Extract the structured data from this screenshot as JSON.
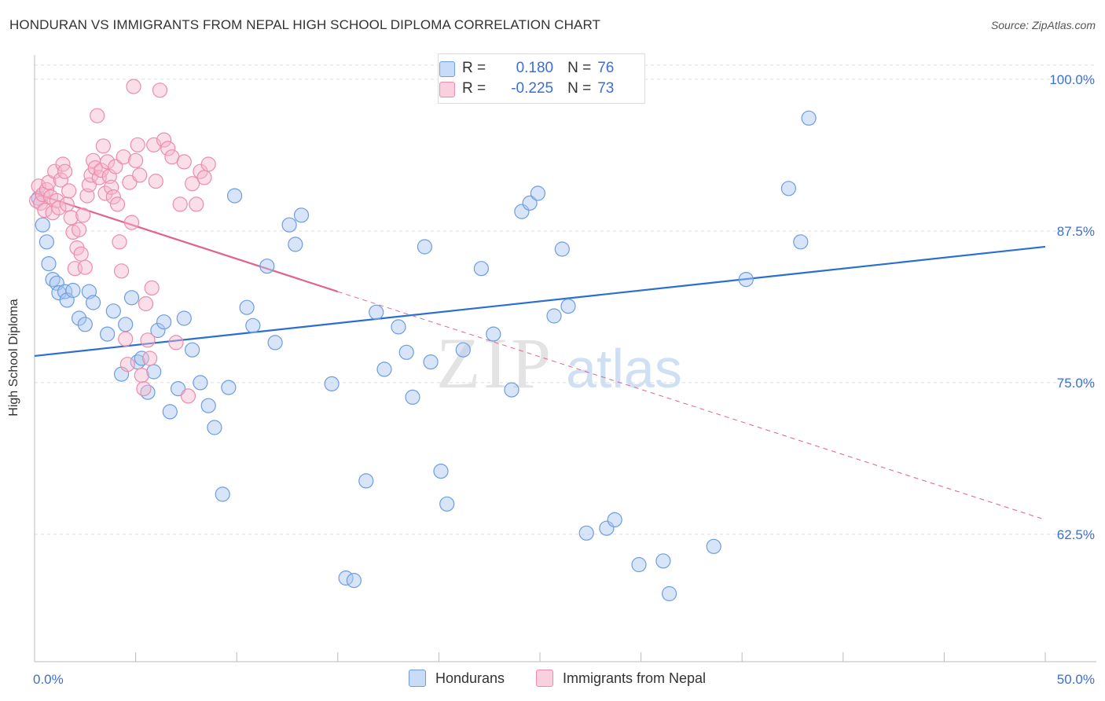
{
  "header": {
    "title": "HONDURAN VS IMMIGRANTS FROM NEPAL HIGH SCHOOL DIPLOMA CORRELATION CHART",
    "source": "Source: ZipAtlas.com"
  },
  "watermark": {
    "zip": "ZIP",
    "atlas": "atlas"
  },
  "legend": {
    "rows": [
      {
        "r_label": "R =",
        "r_value": "0.180",
        "n_label": "N =",
        "n_value": "76",
        "color": "#a9c6f0"
      },
      {
        "r_label": "R =",
        "r_value": "-0.225",
        "n_label": "N =",
        "n_value": "73",
        "color": "#f5b8cb"
      }
    ]
  },
  "bottom_legend": {
    "items": [
      {
        "label": "Hondurans",
        "color": "#a9c6f0"
      },
      {
        "label": "Immigrants from Nepal",
        "color": "#f5b8cb"
      }
    ]
  },
  "colors": {
    "blue": "#5b93e0",
    "blue_line": "#2a6fd0",
    "pink": "#ee89a8",
    "pink_line": "#e0648e",
    "axis_text": "#3a6fd8",
    "grid": "#dddddd"
  },
  "chart_data": {
    "type": "scatter",
    "title": "HONDURAN VS IMMIGRANTS FROM NEPAL HIGH SCHOOL DIPLOMA CORRELATION CHART",
    "xlabel": "",
    "ylabel": "High School Diploma",
    "xlim": [
      0,
      50
    ],
    "ylim": [
      52,
      102
    ],
    "x_tick_labels": [
      "0.0%",
      "50.0%"
    ],
    "y_ticks": [
      62.5,
      75.0,
      87.5,
      100.0
    ],
    "y_tick_labels": [
      "62.5%",
      "75.0%",
      "87.5%",
      "100.0%"
    ],
    "grid": true,
    "series": [
      {
        "name": "Hondurans",
        "color": "#5b93e0",
        "points": [
          [
            0.2,
            90.2
          ],
          [
            0.4,
            88.0
          ],
          [
            0.6,
            86.6
          ],
          [
            0.7,
            84.8
          ],
          [
            0.9,
            83.5
          ],
          [
            1.1,
            83.2
          ],
          [
            1.2,
            82.4
          ],
          [
            1.5,
            82.5
          ],
          [
            1.6,
            81.8
          ],
          [
            1.9,
            82.6
          ],
          [
            2.2,
            80.3
          ],
          [
            2.5,
            79.8
          ],
          [
            2.7,
            82.5
          ],
          [
            2.9,
            81.6
          ],
          [
            3.6,
            79.0
          ],
          [
            3.9,
            80.9
          ],
          [
            4.3,
            75.7
          ],
          [
            4.5,
            79.8
          ],
          [
            4.8,
            82.0
          ],
          [
            5.1,
            76.7
          ],
          [
            5.3,
            77.0
          ],
          [
            5.6,
            74.2
          ],
          [
            5.9,
            75.9
          ],
          [
            6.1,
            79.3
          ],
          [
            6.4,
            80.0
          ],
          [
            6.7,
            72.6
          ],
          [
            7.1,
            74.5
          ],
          [
            7.4,
            80.3
          ],
          [
            7.8,
            77.7
          ],
          [
            8.2,
            75.0
          ],
          [
            8.6,
            73.1
          ],
          [
            8.9,
            71.3
          ],
          [
            9.3,
            65.8
          ],
          [
            9.6,
            74.6
          ],
          [
            9.9,
            90.4
          ],
          [
            10.5,
            81.2
          ],
          [
            10.8,
            79.7
          ],
          [
            11.5,
            84.6
          ],
          [
            11.9,
            78.3
          ],
          [
            12.6,
            88.0
          ],
          [
            12.9,
            86.4
          ],
          [
            13.2,
            88.8
          ],
          [
            14.7,
            74.9
          ],
          [
            15.4,
            58.9
          ],
          [
            15.8,
            58.7
          ],
          [
            16.4,
            66.9
          ],
          [
            16.9,
            80.8
          ],
          [
            17.3,
            76.1
          ],
          [
            18.0,
            79.6
          ],
          [
            18.4,
            77.5
          ],
          [
            18.7,
            73.8
          ],
          [
            19.3,
            86.2
          ],
          [
            19.6,
            76.7
          ],
          [
            20.1,
            67.7
          ],
          [
            20.4,
            65.0
          ],
          [
            21.2,
            77.7
          ],
          [
            22.1,
            84.4
          ],
          [
            22.7,
            79.0
          ],
          [
            23.6,
            74.4
          ],
          [
            24.1,
            89.1
          ],
          [
            24.5,
            89.8
          ],
          [
            24.9,
            90.6
          ],
          [
            25.7,
            80.5
          ],
          [
            26.1,
            86.0
          ],
          [
            26.4,
            81.3
          ],
          [
            27.3,
            62.6
          ],
          [
            28.3,
            63.0
          ],
          [
            28.7,
            63.7
          ],
          [
            29.9,
            60.0
          ],
          [
            31.1,
            60.3
          ],
          [
            31.4,
            57.6
          ],
          [
            33.6,
            61.5
          ],
          [
            35.2,
            83.5
          ],
          [
            37.3,
            91.0
          ],
          [
            37.9,
            86.6
          ],
          [
            38.3,
            96.8
          ]
        ]
      },
      {
        "name": "Immigrants from Nepal",
        "color": "#ee89a8",
        "points": [
          [
            0.1,
            90.0
          ],
          [
            0.2,
            91.2
          ],
          [
            0.3,
            89.8
          ],
          [
            0.4,
            90.5
          ],
          [
            0.5,
            89.2
          ],
          [
            0.6,
            90.9
          ],
          [
            0.7,
            91.5
          ],
          [
            0.8,
            90.3
          ],
          [
            0.9,
            89.0
          ],
          [
            1.0,
            92.4
          ],
          [
            1.1,
            90.0
          ],
          [
            1.2,
            89.4
          ],
          [
            1.3,
            91.7
          ],
          [
            1.4,
            93.0
          ],
          [
            1.5,
            92.4
          ],
          [
            1.6,
            89.7
          ],
          [
            1.7,
            90.8
          ],
          [
            1.8,
            88.6
          ],
          [
            1.9,
            87.4
          ],
          [
            2.0,
            84.4
          ],
          [
            2.1,
            86.1
          ],
          [
            2.2,
            87.6
          ],
          [
            2.3,
            85.6
          ],
          [
            2.4,
            88.8
          ],
          [
            2.5,
            84.5
          ],
          [
            2.6,
            90.4
          ],
          [
            2.7,
            91.3
          ],
          [
            2.8,
            92.1
          ],
          [
            2.9,
            93.3
          ],
          [
            3.0,
            92.7
          ],
          [
            3.1,
            97.0
          ],
          [
            3.2,
            91.9
          ],
          [
            3.3,
            92.5
          ],
          [
            3.4,
            94.5
          ],
          [
            3.5,
            90.6
          ],
          [
            3.6,
            93.2
          ],
          [
            3.7,
            92.0
          ],
          [
            3.8,
            91.1
          ],
          [
            3.9,
            90.3
          ],
          [
            4.0,
            92.8
          ],
          [
            4.1,
            89.7
          ],
          [
            4.2,
            86.6
          ],
          [
            4.3,
            84.2
          ],
          [
            4.4,
            93.6
          ],
          [
            4.5,
            78.6
          ],
          [
            4.6,
            76.5
          ],
          [
            4.7,
            91.5
          ],
          [
            4.8,
            88.2
          ],
          [
            4.9,
            99.4
          ],
          [
            5.0,
            93.3
          ],
          [
            5.1,
            94.6
          ],
          [
            5.2,
            92.1
          ],
          [
            5.3,
            75.6
          ],
          [
            5.4,
            74.5
          ],
          [
            5.5,
            81.5
          ],
          [
            5.6,
            78.5
          ],
          [
            5.7,
            77.0
          ],
          [
            5.8,
            82.8
          ],
          [
            5.9,
            94.6
          ],
          [
            6.0,
            91.6
          ],
          [
            6.2,
            99.1
          ],
          [
            6.4,
            95.0
          ],
          [
            6.6,
            94.3
          ],
          [
            6.8,
            93.6
          ],
          [
            7.0,
            78.3
          ],
          [
            7.2,
            89.7
          ],
          [
            7.4,
            93.2
          ],
          [
            7.6,
            73.9
          ],
          [
            7.8,
            91.4
          ],
          [
            8.0,
            89.7
          ],
          [
            8.2,
            92.4
          ],
          [
            8.4,
            91.9
          ],
          [
            8.6,
            93.0
          ]
        ]
      }
    ],
    "trend_lines": [
      {
        "series": "Hondurans",
        "x": [
          0,
          50
        ],
        "y": [
          77.2,
          86.2
        ],
        "style": "solid"
      },
      {
        "series": "Immigrants from Nepal",
        "x": [
          0,
          15
        ],
        "y": [
          90.6,
          82.5
        ],
        "style": "solid"
      },
      {
        "series": "Immigrants from Nepal",
        "x": [
          15,
          50
        ],
        "y": [
          82.5,
          63.7
        ],
        "style": "dashed"
      }
    ]
  }
}
